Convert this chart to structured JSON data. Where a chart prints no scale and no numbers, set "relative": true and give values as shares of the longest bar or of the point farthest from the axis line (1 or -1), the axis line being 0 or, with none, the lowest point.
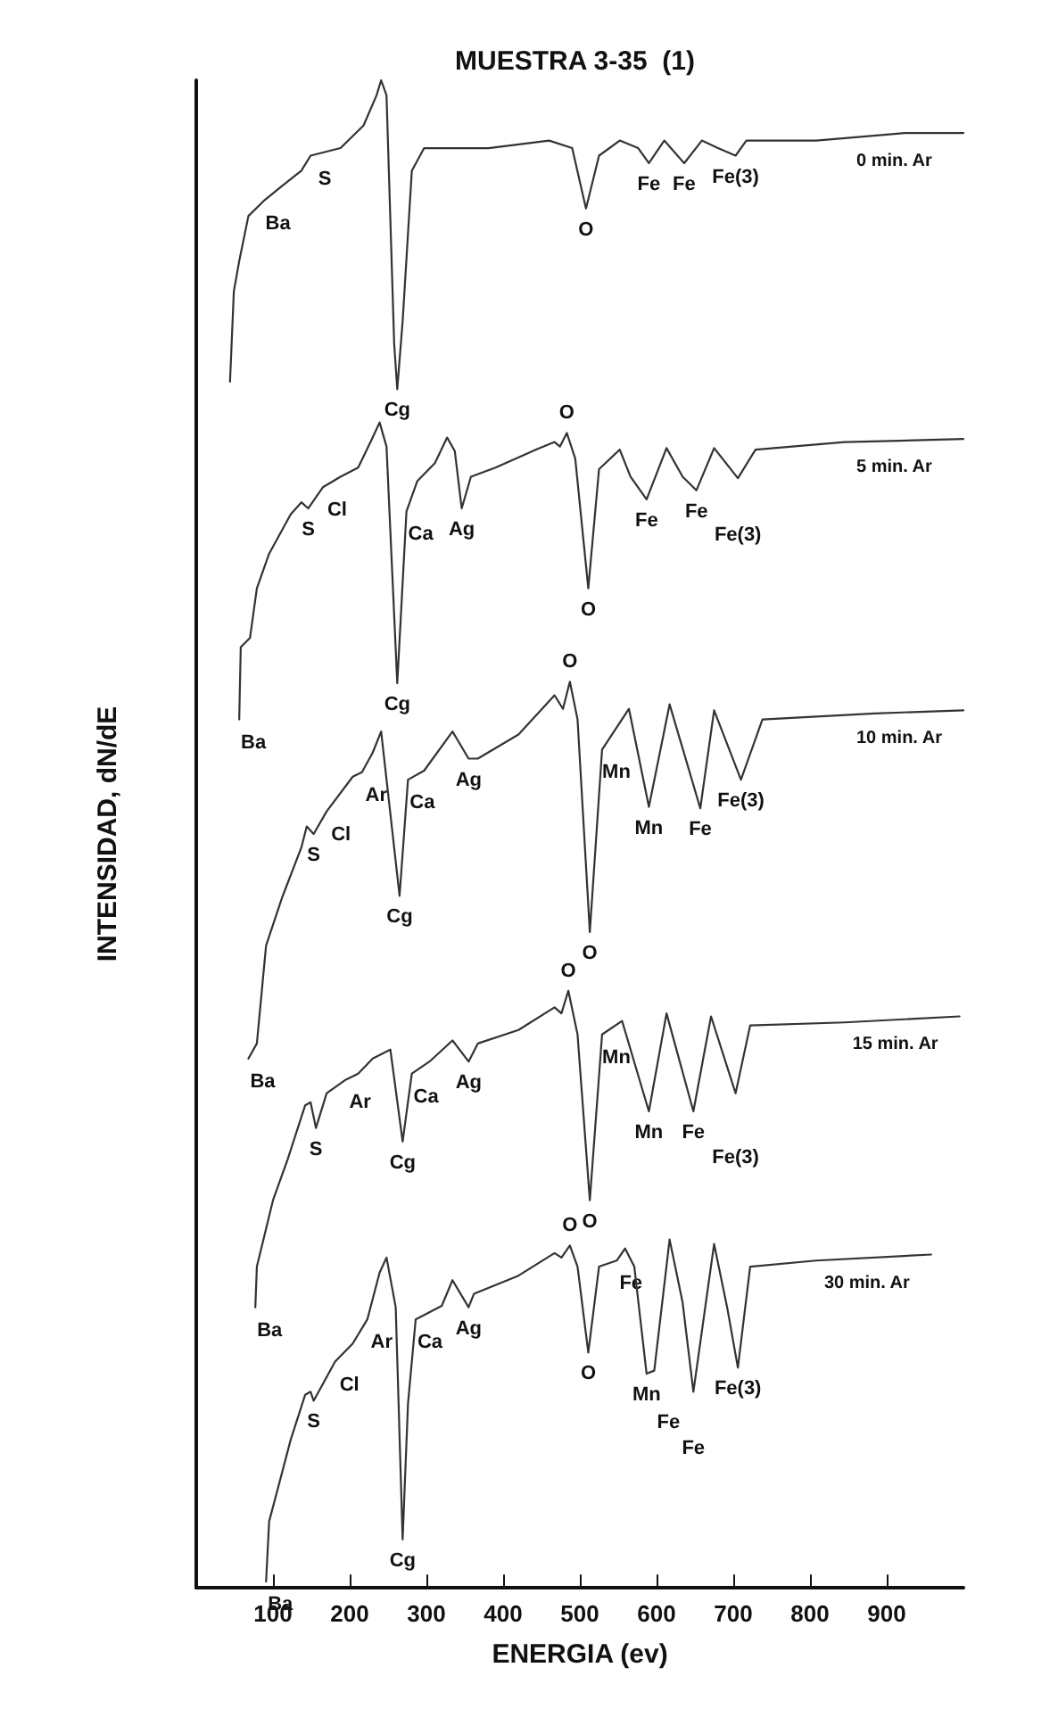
{
  "chart_data": {
    "type": "line",
    "title": "MUESTRA 3-35  (1)",
    "xlabel": "ENERGIA (ev)",
    "ylabel": "INTENSIDAD, dN/dE",
    "relative": true,
    "xlim": [
      0,
      1000
    ],
    "xticks": [
      100,
      200,
      300,
      400,
      500,
      600,
      700,
      800,
      900
    ],
    "marker": "none",
    "line_style": "solid",
    "legend": false,
    "grid": false,
    "series": [
      {
        "name": "0 min. Ar",
        "color": "#333333",
        "x": [
          44,
          49,
          56,
          68,
          88,
          112,
          137,
          149,
          188,
          218,
          235,
          241,
          248,
          258,
          262,
          269,
          281,
          297,
          381,
          460,
          490,
          508,
          525,
          552,
          576,
          590,
          610,
          636,
          659,
          680,
          703,
          717,
          808,
          924,
          1000
        ],
        "values": [
          0.8,
          0.86,
          0.88,
          0.91,
          0.92,
          0.93,
          0.94,
          0.95,
          0.955,
          0.97,
          0.99,
          1.0,
          0.99,
          0.825,
          0.795,
          0.84,
          0.94,
          0.955,
          0.955,
          0.96,
          0.955,
          0.915,
          0.95,
          0.96,
          0.955,
          0.945,
          0.96,
          0.945,
          0.96,
          0.955,
          0.95,
          0.96,
          0.96,
          0.965,
          0.965
        ]
      },
      {
        "name": "5 min. Ar",
        "color": "#333333",
        "x": [
          56,
          58,
          70,
          79,
          95,
          123,
          137,
          146,
          165,
          188,
          211,
          228,
          239,
          248,
          262,
          274,
          288,
          311,
          327,
          337,
          346,
          358,
          390,
          443,
          467,
          474,
          483,
          494,
          511,
          525,
          552,
          566,
          587,
          613,
          634,
          652,
          675,
          706,
          729,
          845,
          1000
        ],
        "values": [
          0.576,
          0.624,
          0.63,
          0.663,
          0.686,
          0.712,
          0.72,
          0.716,
          0.73,
          0.737,
          0.743,
          0.761,
          0.773,
          0.757,
          0.6,
          0.714,
          0.734,
          0.746,
          0.763,
          0.754,
          0.716,
          0.737,
          0.743,
          0.755,
          0.76,
          0.757,
          0.766,
          0.749,
          0.663,
          0.742,
          0.755,
          0.737,
          0.722,
          0.756,
          0.737,
          0.728,
          0.756,
          0.736,
          0.755,
          0.76,
          0.762
        ]
      },
      {
        "name": "10 min. Ar",
        "color": "#333333",
        "x": [
          68,
          79,
          91,
          112,
          137,
          144,
          153,
          170,
          204,
          216,
          230,
          241,
          265,
          276,
          297,
          334,
          355,
          367,
          420,
          467,
          478,
          487,
          497,
          513,
          529,
          564,
          590,
          617,
          657,
          675,
          710,
          738,
          884,
          1000
        ],
        "values": [
          0.351,
          0.361,
          0.426,
          0.458,
          0.491,
          0.505,
          0.5,
          0.515,
          0.538,
          0.541,
          0.554,
          0.568,
          0.459,
          0.536,
          0.542,
          0.568,
          0.55,
          0.55,
          0.566,
          0.592,
          0.583,
          0.601,
          0.576,
          0.435,
          0.556,
          0.583,
          0.518,
          0.586,
          0.517,
          0.582,
          0.536,
          0.576,
          0.58,
          0.582
        ]
      },
      {
        "name": "15 min. Ar",
        "color": "#333333",
        "x": [
          77,
          79,
          100,
          119,
          142,
          149,
          156,
          170,
          195,
          211,
          230,
          253,
          269,
          281,
          304,
          334,
          355,
          367,
          420,
          467,
          476,
          485,
          497,
          513,
          529,
          555,
          590,
          613,
          648,
          671,
          703,
          722,
          845,
          995
        ],
        "values": [
          0.186,
          0.213,
          0.257,
          0.284,
          0.32,
          0.322,
          0.305,
          0.328,
          0.337,
          0.341,
          0.351,
          0.357,
          0.296,
          0.341,
          0.349,
          0.363,
          0.349,
          0.361,
          0.37,
          0.385,
          0.381,
          0.396,
          0.367,
          0.257,
          0.367,
          0.376,
          0.316,
          0.381,
          0.316,
          0.379,
          0.328,
          0.373,
          0.375,
          0.379
        ]
      },
      {
        "name": "30 min. Ar",
        "color": "#333333",
        "x": [
          91,
          95,
          107,
          123,
          142,
          149,
          153,
          181,
          204,
          223,
          239,
          248,
          260,
          269,
          276,
          286,
          320,
          334,
          355,
          362,
          420,
          467,
          476,
          487,
          497,
          511,
          525,
          548,
          559,
          571,
          587,
          597,
          617,
          634,
          648,
          675,
          692,
          706,
          722,
          808,
          958
        ],
        "values": [
          0.004,
          0.044,
          0.067,
          0.098,
          0.128,
          0.13,
          0.124,
          0.15,
          0.162,
          0.178,
          0.209,
          0.219,
          0.186,
          0.032,
          0.122,
          0.178,
          0.187,
          0.204,
          0.186,
          0.195,
          0.207,
          0.222,
          0.219,
          0.227,
          0.213,
          0.156,
          0.213,
          0.217,
          0.225,
          0.213,
          0.142,
          0.144,
          0.231,
          0.189,
          0.13,
          0.228,
          0.186,
          0.146,
          0.213,
          0.217,
          0.221
        ]
      }
    ],
    "annotations": [
      {
        "text": "Ba",
        "x": 88,
        "y": 0.92
      },
      {
        "text": "S",
        "x": 149,
        "y": 0.95
      },
      {
        "text": "Cg",
        "x": 262,
        "y": 0.795
      },
      {
        "text": "O",
        "x": 508,
        "y": 0.915
      },
      {
        "text": "Fe",
        "x": 590,
        "y": 0.945
      },
      {
        "text": "Fe",
        "x": 636,
        "y": 0.945
      },
      {
        "text": "Fe(3)",
        "x": 703,
        "y": 0.95
      },
      {
        "text": "Ba",
        "x": 56,
        "y": 0.576
      },
      {
        "text": "S",
        "x": 146,
        "y": 0.716
      },
      {
        "text": "Cl",
        "x": 165,
        "y": 0.73
      },
      {
        "text": "Ca",
        "x": 274,
        "y": 0.714
      },
      {
        "text": "Ag",
        "x": 346,
        "y": 0.716
      },
      {
        "text": "O",
        "x": 483,
        "y": 0.766
      },
      {
        "text": "Cg",
        "x": 262,
        "y": 0.6
      },
      {
        "text": "O",
        "x": 511,
        "y": 0.663
      },
      {
        "text": "Fe",
        "x": 587,
        "y": 0.722
      },
      {
        "text": "Fe",
        "x": 652,
        "y": 0.728
      },
      {
        "text": "Fe(3)",
        "x": 706,
        "y": 0.736
      },
      {
        "text": "Ba",
        "x": 68,
        "y": 0.351
      },
      {
        "text": "S",
        "x": 153,
        "y": 0.5
      },
      {
        "text": "Cl",
        "x": 170,
        "y": 0.515
      },
      {
        "text": "Ar",
        "x": 216,
        "y": 0.541
      },
      {
        "text": "Cg",
        "x": 265,
        "y": 0.459
      },
      {
        "text": "Ca",
        "x": 276,
        "y": 0.536
      },
      {
        "text": "Ag",
        "x": 355,
        "y": 0.55
      },
      {
        "text": "O",
        "x": 487,
        "y": 0.601
      },
      {
        "text": "Mn",
        "x": 529,
        "y": 0.556
      },
      {
        "text": "O",
        "x": 513,
        "y": 0.435
      },
      {
        "text": "Mn",
        "x": 590,
        "y": 0.518
      },
      {
        "text": "Fe",
        "x": 657,
        "y": 0.517
      },
      {
        "text": "Fe(3)",
        "x": 710,
        "y": 0.536
      },
      {
        "text": "Ba",
        "x": 77,
        "y": 0.186
      },
      {
        "text": "S",
        "x": 156,
        "y": 0.305
      },
      {
        "text": "Ar",
        "x": 195,
        "y": 0.337
      },
      {
        "text": "Cg",
        "x": 269,
        "y": 0.296
      },
      {
        "text": "Ca",
        "x": 281,
        "y": 0.341
      },
      {
        "text": "Ag",
        "x": 355,
        "y": 0.349
      },
      {
        "text": "O",
        "x": 485,
        "y": 0.396
      },
      {
        "text": "Mn",
        "x": 529,
        "y": 0.367
      },
      {
        "text": "Mn",
        "x": 590,
        "y": 0.316
      },
      {
        "text": "O",
        "x": 513,
        "y": 0.257
      },
      {
        "text": "Fe",
        "x": 648,
        "y": 0.316
      },
      {
        "text": "Fe(3)",
        "x": 703,
        "y": 0.328
      },
      {
        "text": "Ba",
        "x": 91,
        "y": 0.004
      },
      {
        "text": "S",
        "x": 153,
        "y": 0.124
      },
      {
        "text": "Cl",
        "x": 181,
        "y": 0.15
      },
      {
        "text": "Ar",
        "x": 223,
        "y": 0.178
      },
      {
        "text": "Cg",
        "x": 269,
        "y": 0.032
      },
      {
        "text": "Ca",
        "x": 286,
        "y": 0.178
      },
      {
        "text": "Ag",
        "x": 355,
        "y": 0.186
      },
      {
        "text": "O",
        "x": 487,
        "y": 0.227
      },
      {
        "text": "O",
        "x": 511,
        "y": 0.156
      },
      {
        "text": "Fe",
        "x": 548,
        "y": 0.217
      },
      {
        "text": "Mn",
        "x": 587,
        "y": 0.142
      },
      {
        "text": "Fe",
        "x": 597,
        "y": 0.144
      },
      {
        "text": "Fe",
        "x": 648,
        "y": 0.13
      },
      {
        "text": "Fe(3)",
        "x": 706,
        "y": 0.146
      }
    ]
  }
}
